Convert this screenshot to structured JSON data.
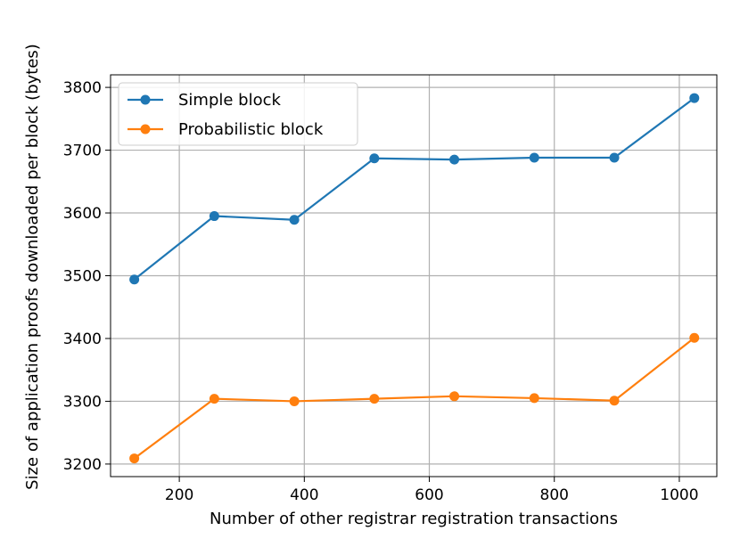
{
  "chart_data": {
    "type": "line",
    "title": "",
    "xlabel": "Number of other registrar registration transactions",
    "ylabel": "Size of application proofs downloaded per block (bytes)",
    "xlim": [
      90,
      1060
    ],
    "ylim": [
      3180,
      3820
    ],
    "xticks": [
      200,
      400,
      600,
      800,
      1000
    ],
    "yticks": [
      3200,
      3300,
      3400,
      3500,
      3600,
      3700,
      3800
    ],
    "grid": true,
    "legend_position": "upper-left",
    "x": [
      128,
      256,
      384,
      512,
      640,
      768,
      896,
      1024
    ],
    "series": [
      {
        "name": "Simple block",
        "color": "#1f77b4",
        "values": [
          3494,
          3595,
          3589,
          3687,
          3685,
          3688,
          3688,
          3783
        ]
      },
      {
        "name": "Probabilistic block",
        "color": "#ff7f0e",
        "values": [
          3209,
          3304,
          3300,
          3304,
          3308,
          3305,
          3301,
          3401
        ]
      }
    ]
  }
}
